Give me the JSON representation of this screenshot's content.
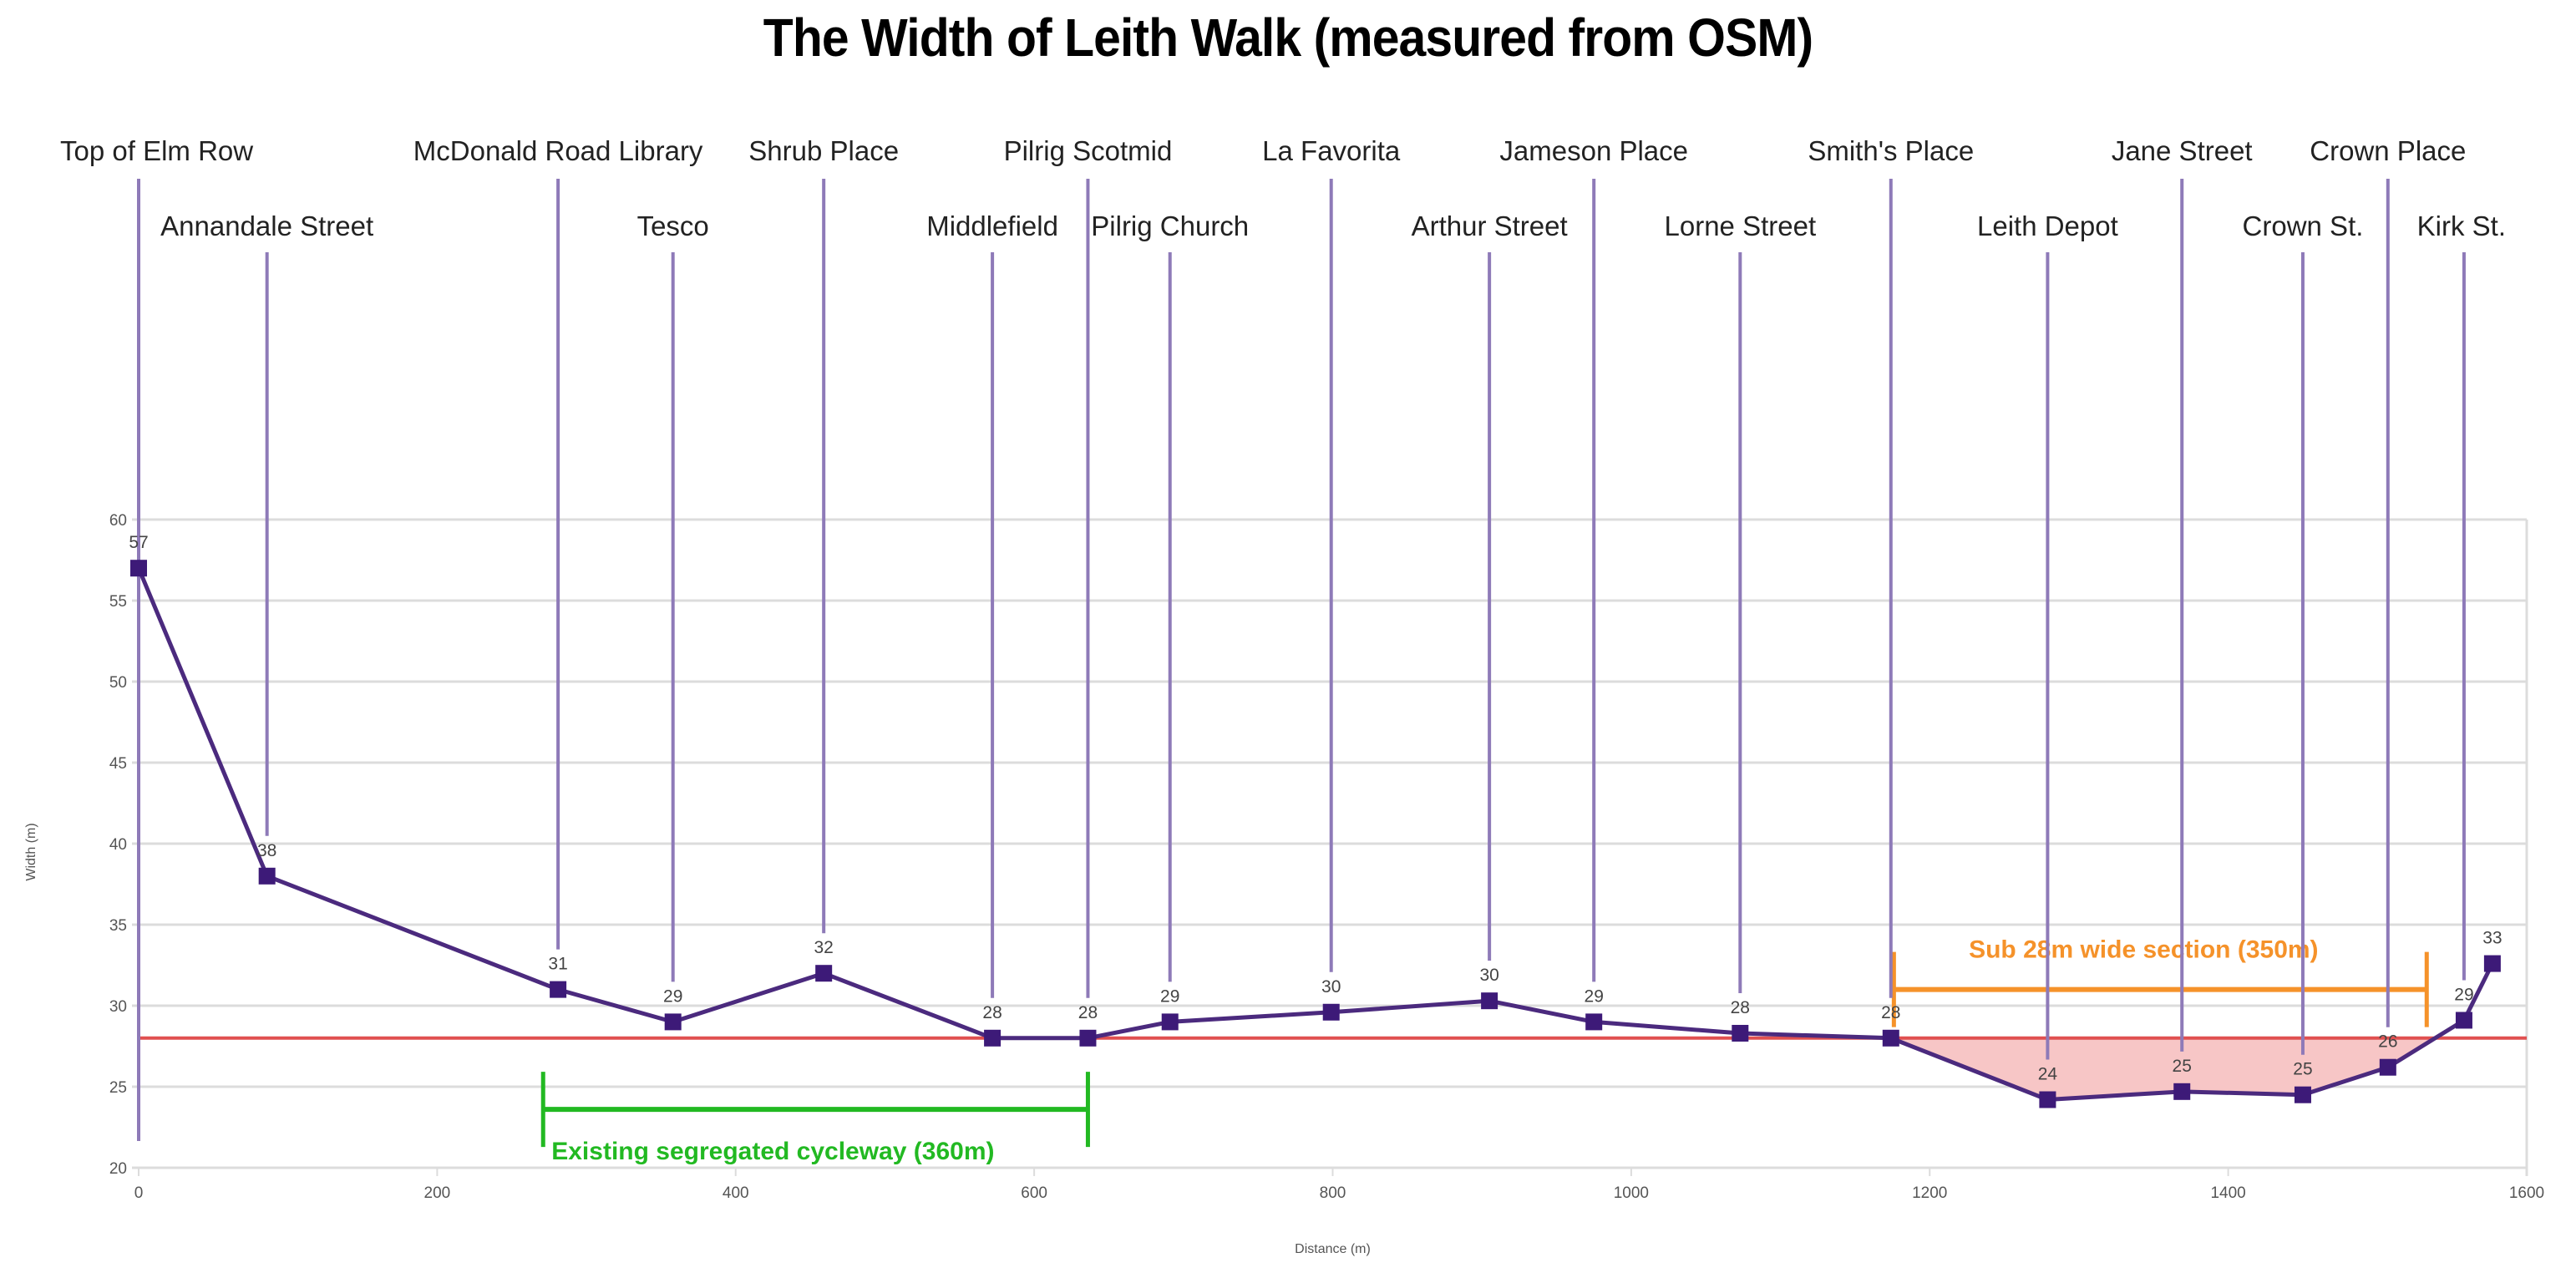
{
  "chart_data": {
    "type": "line",
    "title": "The Width of Leith Walk (measured from OSM)",
    "xlabel": "Distance (m)",
    "ylabel": "Width (m)",
    "xlim": [
      0,
      1600
    ],
    "ylim": [
      20,
      60
    ],
    "xticks": [
      0,
      200,
      400,
      600,
      800,
      1000,
      1200,
      1400,
      1600
    ],
    "yticks": [
      20,
      25,
      30,
      35,
      40,
      45,
      50,
      55,
      60
    ],
    "grid": true,
    "threshold": {
      "value": 28,
      "color": "#e05050"
    },
    "colors": {
      "line": "#4b2a7e",
      "marker": "#3d1a78",
      "place_line": "#8e7ab8",
      "below_fill": "#f7c6c6",
      "green": "#22b922",
      "orange": "#f5922a"
    },
    "series": [
      {
        "name": "Width",
        "points": [
          {
            "x": 0,
            "y": 57,
            "label": "57"
          },
          {
            "x": 86,
            "y": 38,
            "label": "38"
          },
          {
            "x": 281,
            "y": 31,
            "label": "31"
          },
          {
            "x": 358,
            "y": 29,
            "label": "29"
          },
          {
            "x": 459,
            "y": 32,
            "label": "32"
          },
          {
            "x": 572,
            "y": 28,
            "label": "28"
          },
          {
            "x": 636,
            "y": 28,
            "label": "28"
          },
          {
            "x": 691,
            "y": 29,
            "label": "29"
          },
          {
            "x": 799,
            "y": 29.6,
            "label": "30"
          },
          {
            "x": 905,
            "y": 30.3,
            "label": "30"
          },
          {
            "x": 975,
            "y": 29,
            "label": "29"
          },
          {
            "x": 1073,
            "y": 28.3,
            "label": "28"
          },
          {
            "x": 1174,
            "y": 28,
            "label": "28"
          },
          {
            "x": 1279,
            "y": 24.2,
            "label": "24"
          },
          {
            "x": 1369,
            "y": 24.7,
            "label": "25"
          },
          {
            "x": 1450,
            "y": 24.5,
            "label": "25"
          },
          {
            "x": 1507,
            "y": 26.2,
            "label": "26"
          },
          {
            "x": 1558,
            "y": 29.1,
            "label": "29"
          },
          {
            "x": 1577,
            "y": 32.6,
            "label": "33"
          }
        ]
      }
    ],
    "places": [
      {
        "name": "Top of Elm Row",
        "x": 0,
        "row": 1
      },
      {
        "name": "Annandale Street",
        "x": 86,
        "row": 2
      },
      {
        "name": "McDonald Road Library",
        "x": 281,
        "row": 1
      },
      {
        "name": "Tesco",
        "x": 358,
        "row": 2
      },
      {
        "name": "Shrub Place",
        "x": 459,
        "row": 1
      },
      {
        "name": "Middlefield",
        "x": 572,
        "row": 2
      },
      {
        "name": "Pilrig Scotmid",
        "x": 636,
        "row": 1
      },
      {
        "name": "Pilrig Church",
        "x": 691,
        "row": 2
      },
      {
        "name": "La Favorita",
        "x": 799,
        "row": 1
      },
      {
        "name": "Arthur Street",
        "x": 905,
        "row": 2
      },
      {
        "name": "Jameson Place",
        "x": 975,
        "row": 1
      },
      {
        "name": "Lorne Street",
        "x": 1073,
        "row": 2
      },
      {
        "name": "Smith's Place",
        "x": 1174,
        "row": 1
      },
      {
        "name": "Leith Depot",
        "x": 1279,
        "row": 2
      },
      {
        "name": "Jane Street",
        "x": 1369,
        "row": 1
      },
      {
        "name": "Crown St.",
        "x": 1450,
        "row": 2
      },
      {
        "name": "Crown Place",
        "x": 1507,
        "row": 1
      },
      {
        "name": "Kirk St.",
        "x": 1558,
        "row": 2
      }
    ],
    "annotations": [
      {
        "name": "existing-cycleway",
        "text": "Existing segregated cycleway (360m)",
        "x_start": 271,
        "x_end": 636,
        "y": 23.6,
        "color": "#22b922"
      },
      {
        "name": "sub-28m-section",
        "text": "Sub 28m wide section (350m)",
        "x_start": 1176,
        "x_end": 1533,
        "y": 31.0,
        "color": "#f5922a"
      }
    ]
  }
}
